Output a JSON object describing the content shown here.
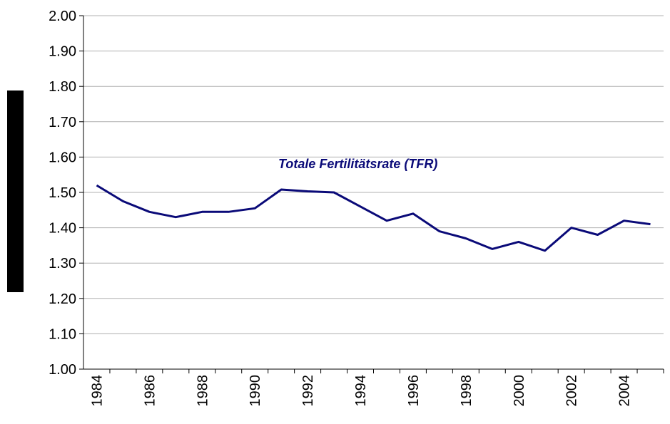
{
  "chart_data": {
    "type": "line",
    "categories": [
      "1984",
      null,
      "1986",
      null,
      "1988",
      null,
      "1990",
      null,
      "1992",
      null,
      "1994",
      null,
      "1996",
      null,
      "1998",
      null,
      "2000",
      null,
      "2002",
      null,
      "2004",
      null
    ],
    "series": [
      {
        "name": "Totale Fertilitätsrate (TFR)",
        "color": "#0a0a78",
        "values": [
          1.52,
          1.475,
          1.445,
          1.43,
          1.445,
          1.445,
          1.455,
          1.508,
          1.503,
          1.5,
          1.46,
          1.42,
          1.44,
          1.39,
          1.37,
          1.34,
          1.36,
          1.335,
          1.4,
          1.38,
          1.42,
          1.41
        ]
      }
    ],
    "ylim": [
      1.0,
      2.0
    ],
    "yticks": [
      {
        "value": 1.0,
        "label": "1.00"
      },
      {
        "value": 1.1,
        "label": "1.10"
      },
      {
        "value": 1.2,
        "label": "1.20"
      },
      {
        "value": 1.3,
        "label": "1.30"
      },
      {
        "value": 1.4,
        "label": "1.40"
      },
      {
        "value": 1.5,
        "label": "1.50"
      },
      {
        "value": 1.6,
        "label": "1.60"
      },
      {
        "value": 1.7,
        "label": "1.70"
      },
      {
        "value": 1.8,
        "label": "1.80"
      },
      {
        "value": 1.9,
        "label": "1.90"
      },
      {
        "value": 2.0,
        "label": "2.00"
      }
    ],
    "grid": true
  }
}
